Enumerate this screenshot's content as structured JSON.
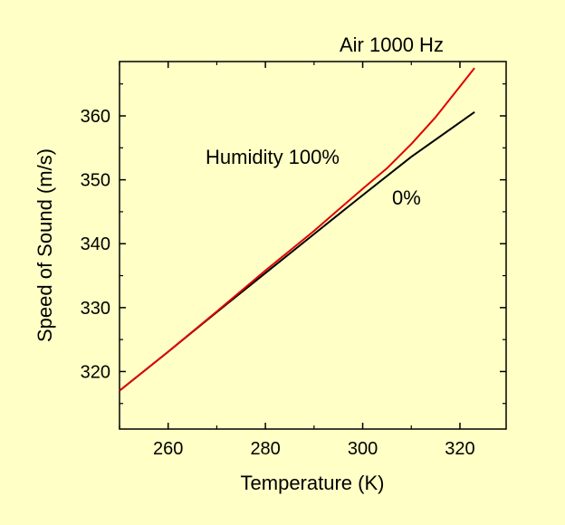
{
  "chart_data": {
    "type": "line",
    "title": "Air 1000 Hz",
    "xlabel": "Temperature (K)",
    "ylabel": "Speed of Sound (m/s)",
    "xlim": [
      250,
      329.5
    ],
    "ylim": [
      311,
      368.5
    ],
    "xticks": [
      260,
      280,
      300,
      320
    ],
    "xtick_labels": [
      "260",
      "280",
      "300",
      "320"
    ],
    "yticks": [
      320,
      330,
      340,
      350,
      360
    ],
    "ytick_labels": [
      "320",
      "330",
      "340",
      "350",
      "360"
    ],
    "grid": false,
    "series": [
      {
        "name": "0%",
        "color": "#000000",
        "x": [
          250,
          260,
          270,
          280,
          290,
          300,
          310,
          323
        ],
        "y": [
          317.0,
          323.1,
          329.3,
          335.4,
          341.5,
          347.6,
          353.6,
          360.6
        ]
      },
      {
        "name": "Humidity 100%",
        "color": "#e00000",
        "x": [
          250,
          260,
          270,
          280,
          290,
          300,
          305,
          310,
          315,
          320,
          323
        ],
        "y": [
          317.0,
          323.1,
          329.4,
          335.8,
          342.0,
          348.6,
          351.8,
          355.6,
          359.8,
          364.6,
          367.5
        ]
      }
    ]
  }
}
